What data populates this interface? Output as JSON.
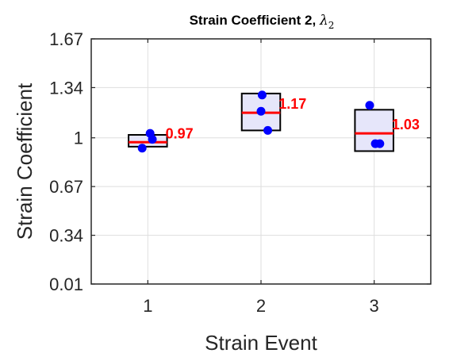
{
  "chart_data": {
    "type": "box",
    "title": {
      "prefix": "Strain Coefficient 2, ",
      "symbol": "λ",
      "subscript": "2"
    },
    "xlabel": "Strain Event",
    "ylabel": "Strain Coefficient",
    "xlim": [
      0.5,
      3.5
    ],
    "ylim": [
      0.01,
      1.67
    ],
    "categories": [
      "1",
      "2",
      "3"
    ],
    "yticks": [
      0.01,
      0.34,
      0.67,
      1,
      1.34,
      1.67
    ],
    "ytick_labels": [
      "0.01",
      "0.34",
      "0.67",
      "1",
      "1.34",
      "1.67"
    ],
    "grid": true,
    "box_fill": "#e6e6fa",
    "box_edge": "#000000",
    "median_color": "#ff0000",
    "point_color": "#0000ff",
    "groups": [
      {
        "category": "1",
        "box_low": 0.94,
        "box_high": 1.02,
        "median": 0.97,
        "median_label": "0.97",
        "points": [
          {
            "x": 0.95,
            "y": 0.93
          },
          {
            "x": 1.02,
            "y": 1.03
          },
          {
            "x": 1.04,
            "y": 0.99
          }
        ]
      },
      {
        "category": "2",
        "box_low": 1.05,
        "box_high": 1.3,
        "median": 1.17,
        "median_label": "1.17",
        "points": [
          {
            "x": 2.01,
            "y": 1.29
          },
          {
            "x": 2.0,
            "y": 1.18
          },
          {
            "x": 2.06,
            "y": 1.05
          }
        ]
      },
      {
        "category": "3",
        "box_low": 0.91,
        "box_high": 1.19,
        "median": 1.03,
        "median_label": "1.03",
        "points": [
          {
            "x": 2.96,
            "y": 1.22
          },
          {
            "x": 3.01,
            "y": 0.96
          },
          {
            "x": 3.05,
            "y": 0.96
          }
        ]
      }
    ]
  }
}
